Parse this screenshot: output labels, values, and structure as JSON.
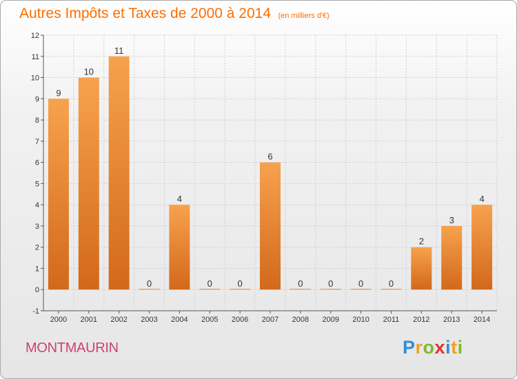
{
  "title": "Autres Impôts et Taxes de 2000 à 2014",
  "unit": "(en milliers d'€)",
  "commune": "MONTMAURIN",
  "brand": {
    "letters": [
      "P",
      "r",
      "o",
      "x",
      "i",
      "t",
      "i"
    ],
    "colors": [
      "#2f8fd8",
      "#f0a020",
      "#80b830",
      "#e03030",
      "#2f8fd8",
      "#f0a020",
      "#80b830"
    ]
  },
  "colors": {
    "bar": "#f5a04a",
    "bar_dark": "#d5701a",
    "title": "#ff6d00",
    "commune": "#d04070"
  },
  "chart_data": {
    "type": "bar",
    "categories": [
      "2000",
      "2001",
      "2002",
      "2003",
      "2004",
      "2005",
      "2006",
      "2007",
      "2008",
      "2009",
      "2010",
      "2011",
      "2012",
      "2013",
      "2014"
    ],
    "values": [
      9,
      10,
      11,
      0,
      4,
      0,
      0,
      6,
      0,
      0,
      0,
      0,
      2,
      3,
      4
    ],
    "data_labels": [
      "9",
      "10",
      "11",
      "0",
      "4",
      "0",
      "0",
      "6",
      "0",
      "0",
      "0",
      "0",
      "2",
      "3",
      "4"
    ],
    "title": "Autres Impôts et Taxes de 2000 à 2014",
    "ylim": [
      -1,
      12
    ],
    "yticks": [
      -1,
      0,
      1,
      2,
      3,
      4,
      5,
      6,
      7,
      8,
      9,
      10,
      11,
      12
    ],
    "ytick_labels": [
      "-1",
      "0",
      "1",
      "2",
      "3",
      "4",
      "5",
      "6",
      "7",
      "8",
      "9",
      "10",
      "11",
      "12"
    ],
    "grid": true
  }
}
